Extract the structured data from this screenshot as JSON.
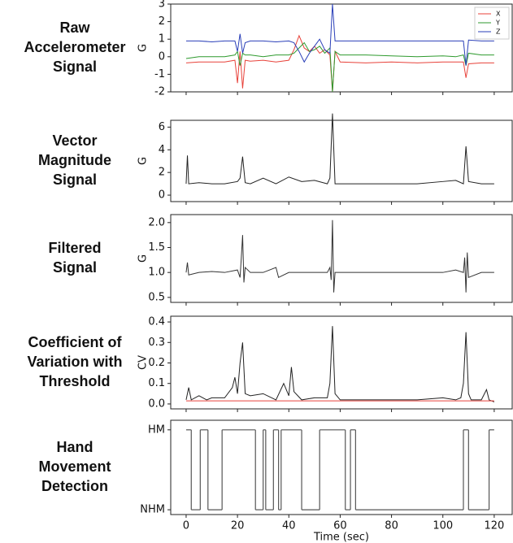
{
  "chart_data": [
    {
      "type": "line",
      "title": [
        "Raw",
        "Accelerometer",
        "Signal"
      ],
      "ylabel": "G",
      "x": [
        0,
        5,
        10,
        15,
        19,
        20,
        21,
        22,
        23,
        25,
        30,
        35,
        40,
        42,
        44,
        46,
        48,
        50,
        52,
        54,
        56,
        57,
        58,
        60,
        70,
        80,
        90,
        100,
        105,
        108,
        109,
        110,
        115,
        120
      ],
      "series": [
        {
          "name": "X",
          "color": "#e8423a",
          "values": [
            -0.35,
            -0.3,
            -0.3,
            -0.3,
            -0.2,
            -1.5,
            0.3,
            -1.8,
            -0.2,
            -0.25,
            -0.2,
            -0.3,
            -0.2,
            0.4,
            1.2,
            0.5,
            0.3,
            0.6,
            0.2,
            0.4,
            0.1,
            -2,
            0.3,
            -0.3,
            -0.35,
            -0.3,
            -0.35,
            -0.3,
            -0.3,
            -0.3,
            -1.2,
            -0.4,
            -0.35,
            -0.35
          ]
        },
        {
          "name": "Y",
          "color": "#2e9a2e",
          "values": [
            -0.1,
            0,
            0,
            0,
            0.1,
            0.3,
            -0.5,
            0.2,
            0.1,
            0.1,
            0,
            0.1,
            0.1,
            0.2,
            0.5,
            0.8,
            0.3,
            0.4,
            0.6,
            0.2,
            0.5,
            -2,
            0.3,
            0.1,
            0.1,
            0.05,
            0,
            0.05,
            0,
            0.1,
            -0.5,
            0.2,
            0.1,
            0.1
          ]
        },
        {
          "name": "Z",
          "color": "#2a3fb8",
          "values": [
            0.9,
            0.9,
            0.85,
            0.9,
            0.9,
            0.3,
            1.3,
            0.2,
            0.8,
            0.9,
            0.9,
            0.85,
            0.9,
            0.8,
            0.3,
            -0.3,
            0.2,
            0.6,
            1.0,
            0.4,
            0.2,
            3,
            0.9,
            0.9,
            0.9,
            0.9,
            0.9,
            0.9,
            0.9,
            0.9,
            -0.5,
            0.95,
            0.9,
            0.9
          ]
        }
      ],
      "legend": "upper right",
      "xlim": [
        -6,
        127
      ],
      "ylim": [
        -2,
        3
      ],
      "xticks": [
        0,
        20,
        40,
        60,
        80,
        100,
        120
      ],
      "yticks": [
        -2,
        -1,
        0,
        1,
        2,
        3
      ]
    },
    {
      "type": "line",
      "title": [
        "Vector",
        "Magnitude",
        "Signal"
      ],
      "ylabel": "G",
      "x": [
        0,
        0.5,
        1,
        5,
        10,
        15,
        20,
        21,
        22,
        23,
        25,
        30,
        35,
        40,
        45,
        50,
        55,
        56,
        57,
        58,
        60,
        70,
        80,
        90,
        100,
        105,
        108,
        109,
        110,
        115,
        120
      ],
      "series": [
        {
          "color": "#222222",
          "values": [
            1,
            3.5,
            1,
            1.1,
            1,
            1,
            1.2,
            1.5,
            3.4,
            1.1,
            1,
            1.5,
            1,
            1.6,
            1.2,
            1.3,
            1,
            1.5,
            7.2,
            1,
            1,
            1,
            1,
            1,
            1.2,
            1.3,
            1,
            4.3,
            1.2,
            1,
            1
          ]
        }
      ],
      "xlim": [
        -6,
        127
      ],
      "ylim": [
        -0.57,
        6.6
      ],
      "xticks": [
        0,
        20,
        40,
        60,
        80,
        100,
        120
      ],
      "yticks": [
        0,
        2,
        4,
        6
      ]
    },
    {
      "type": "line",
      "title": [
        "Filtered",
        "Signal"
      ],
      "ylabel": "G",
      "x": [
        0,
        0.5,
        1,
        5,
        10,
        15,
        20,
        21,
        21.5,
        22,
        22.5,
        23,
        25,
        30,
        35,
        36,
        40,
        45,
        50,
        55,
        56,
        56.5,
        57,
        57.5,
        58,
        60,
        70,
        80,
        90,
        100,
        105,
        108,
        108.5,
        109,
        109.5,
        110,
        115,
        120
      ],
      "series": [
        {
          "color": "#333333",
          "values": [
            1,
            1.2,
            0.95,
            1,
            1.02,
            1,
            1.05,
            0.9,
            1.3,
            1.75,
            0.8,
            1.1,
            1,
            1,
            1.1,
            0.9,
            1,
            1,
            1,
            1,
            1.1,
            0.85,
            2.05,
            0.6,
            1,
            1,
            1,
            1,
            1,
            1,
            1.05,
            1,
            1.3,
            0.6,
            1.4,
            0.9,
            1,
            1
          ]
        }
      ],
      "xlim": [
        -6,
        127
      ],
      "ylim": [
        0.4,
        2.16
      ],
      "xticks": [
        0,
        20,
        40,
        60,
        80,
        100,
        120
      ],
      "yticks": [
        0.5,
        {
          "value": 1,
          "label": "1.0"
        },
        1.5,
        {
          "value": 2,
          "label": "2.0"
        }
      ]
    },
    {
      "type": "line",
      "title": [
        "Coefficient of",
        "Variation with",
        "Threshold"
      ],
      "ylabel": "CV",
      "x": [
        0,
        1,
        2,
        5,
        8,
        10,
        15,
        18,
        19,
        20,
        21,
        22,
        23,
        25,
        30,
        35,
        38,
        40,
        41,
        42,
        45,
        50,
        55,
        56,
        57,
        58,
        60,
        70,
        80,
        90,
        100,
        105,
        107,
        108,
        109,
        110,
        111,
        115,
        117,
        118,
        120
      ],
      "series": [
        {
          "color": "#222222",
          "values": [
            0.02,
            0.08,
            0.02,
            0.04,
            0.02,
            0.03,
            0.03,
            0.08,
            0.13,
            0.05,
            0.2,
            0.3,
            0.05,
            0.04,
            0.05,
            0.02,
            0.1,
            0.04,
            0.18,
            0.06,
            0.02,
            0.03,
            0.03,
            0.1,
            0.38,
            0.05,
            0.02,
            0.02,
            0.02,
            0.02,
            0.03,
            0.02,
            0.03,
            0.1,
            0.35,
            0.05,
            0.02,
            0.02,
            0.07,
            0.02,
            0.01
          ]
        },
        {
          "color": "#e8423a",
          "x": [
            0,
            120
          ],
          "values": [
            0.015,
            0.015
          ]
        }
      ],
      "xlim": [
        -6,
        127
      ],
      "ylim": [
        -0.024,
        0.428
      ],
      "xticks": [
        0,
        20,
        40,
        60,
        80,
        100,
        120
      ],
      "yticks": [
        {
          "value": 0,
          "label": "0.0"
        },
        0.1,
        0.2,
        0.3,
        0.4
      ]
    },
    {
      "type": "step",
      "title": [
        "Hand",
        "Movement",
        "Detection"
      ],
      "xlabel": "Time (sec)",
      "x": [
        0,
        2,
        5.5,
        8.5,
        14,
        27,
        30,
        31,
        34,
        36,
        37,
        45,
        52,
        62,
        64,
        66,
        108,
        110,
        118,
        120
      ],
      "series": [
        {
          "color": "#555555",
          "values": [
            1,
            0,
            1,
            0,
            1,
            0,
            1,
            0,
            1,
            0,
            1,
            0,
            1,
            0,
            1,
            0,
            1,
            0,
            1,
            1
          ]
        }
      ],
      "xlim": [
        -6,
        127
      ],
      "ylim": [
        -0.06,
        1.12
      ],
      "xticks": [
        0,
        20,
        40,
        60,
        80,
        100,
        120
      ],
      "yticks": [
        {
          "value": 0,
          "label": "NHM"
        },
        {
          "value": 1,
          "label": "HM"
        }
      ]
    }
  ]
}
